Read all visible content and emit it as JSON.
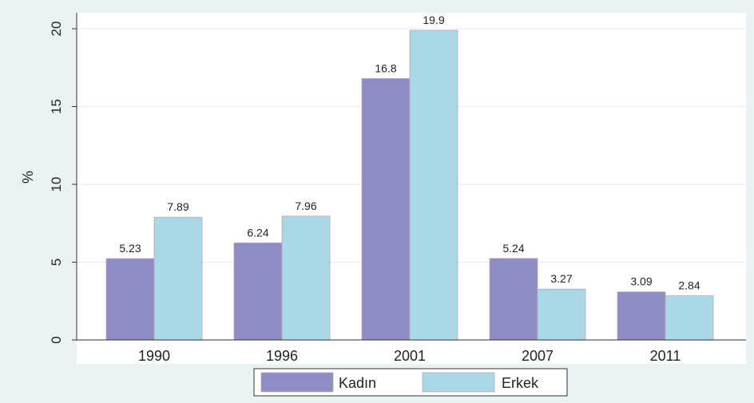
{
  "chart_data": {
    "type": "bar",
    "categories": [
      "1990",
      "1996",
      "2001",
      "2007",
      "2011"
    ],
    "series": [
      {
        "name": "Kadın",
        "values": [
          5.23,
          6.24,
          16.8,
          5.24,
          3.09
        ]
      },
      {
        "name": "Erkek",
        "values": [
          7.89,
          7.96,
          19.9,
          3.27,
          2.84
        ]
      }
    ],
    "value_labels": [
      [
        "5.23",
        "6.24",
        "16.8",
        "5.24",
        "3.09"
      ],
      [
        "7.89",
        "7.96",
        "19.9",
        "3.27",
        "2.84"
      ]
    ],
    "title": "",
    "xlabel": "",
    "ylabel": "%",
    "ylim": [
      0,
      20
    ],
    "yticks": [
      "0",
      "5",
      "10",
      "15",
      "20"
    ],
    "grid": true,
    "legend_position": "bottom",
    "colors": {
      "Kadın": "#8e8cc4",
      "Erkek": "#a9d8e6",
      "plot_background": "#ffffff",
      "page_background": "#eaf2f3",
      "gridline": "#e6eef0"
    }
  }
}
